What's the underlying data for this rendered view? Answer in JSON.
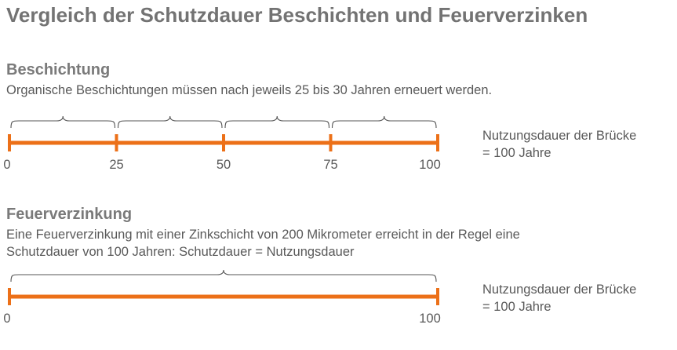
{
  "title": "Vergleich der Schutzdauer Beschichten und Feuerverzinken",
  "colors": {
    "timeline": "#ec7018",
    "text": "#595959",
    "heading": "#7a7a7a",
    "brace": "#555555"
  },
  "coating": {
    "heading": "Beschichtung",
    "description": "Organische Beschichtungen müssen nach jeweils 25 bis 30 Jahren erneuert werden.",
    "timeline": {
      "min": 0,
      "max": 100,
      "ticks": [
        0,
        25,
        50,
        75,
        100
      ],
      "tick_labels": [
        "0",
        "25",
        "50",
        "75",
        "100"
      ],
      "braces": [
        [
          0,
          25
        ],
        [
          25,
          50
        ],
        [
          50,
          75
        ],
        [
          75,
          100
        ]
      ]
    },
    "note_line1": "Nutzungsdauer der Brücke",
    "note_line2": "= 100 Jahre"
  },
  "galvanizing": {
    "heading": "Feuerverzinkung",
    "description_line1": "Eine Feuerverzinkung mit einer Zinkschicht von 200 Mikrometer erreicht in der Regel eine",
    "description_line2": "Schutzdauer von 100 Jahren: Schutzdauer = Nutzungsdauer",
    "timeline": {
      "min": 0,
      "max": 100,
      "ticks": [
        0,
        100
      ],
      "tick_labels": [
        "0",
        "100"
      ],
      "braces": [
        [
          0,
          100
        ]
      ]
    },
    "note_line1": "Nutzungsdauer der Brücke",
    "note_line2": "= 100 Jahre"
  }
}
